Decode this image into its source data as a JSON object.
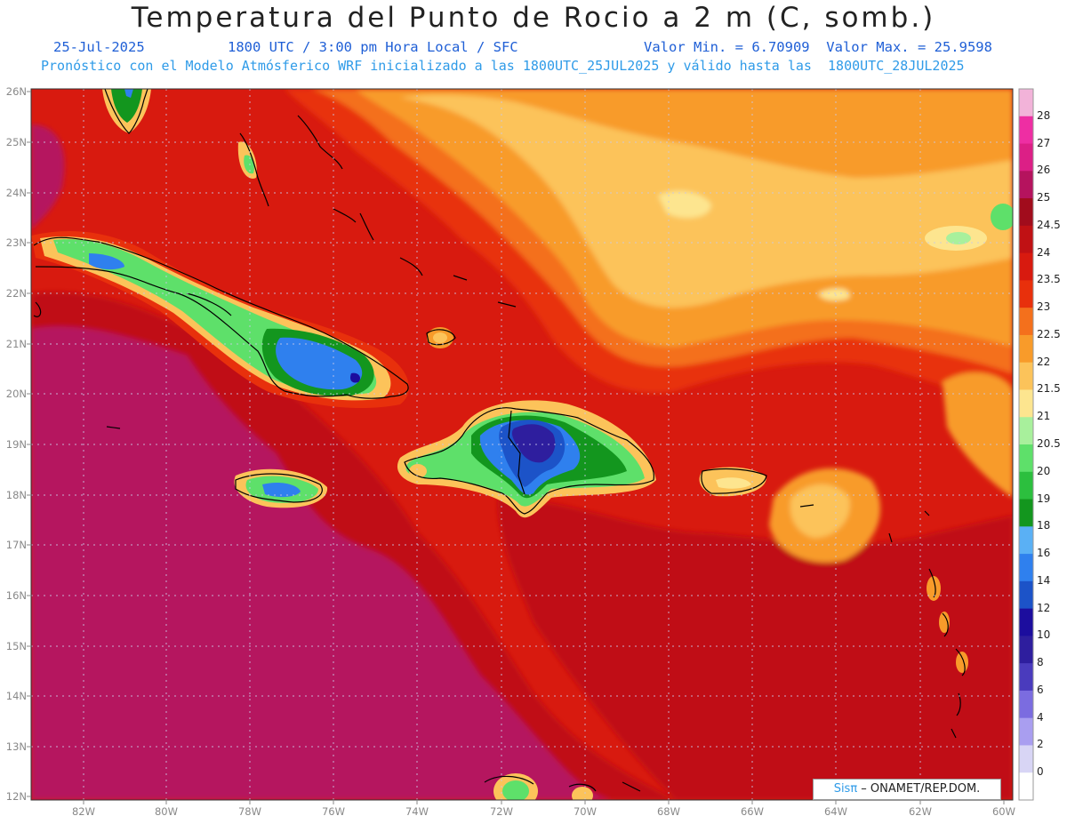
{
  "header": {
    "title": "Temperatura del Punto de Rocio a 2 m (C, somb.)",
    "date": "25-Jul-2025",
    "time": "1800 UTC / 3:00 pm Hora Local / SFC",
    "minmax": "Valor Min. = 6.70909  Valor Max. = 25.9598",
    "model_line": "Pronóstico con el Modelo Atmósferico WRF inicializado a las 1800UTC_25JUL2025 y válido hasta las  1800UTC_28JUL2025"
  },
  "axes": {
    "lat_labels": [
      "26N",
      "25N",
      "24N",
      "23N",
      "22N",
      "21N",
      "20N",
      "19N",
      "18N",
      "17N",
      "16N",
      "15N",
      "14N",
      "13N",
      "12N"
    ],
    "lon_labels": [
      "82W",
      "80W",
      "78W",
      "76W",
      "74W",
      "72W",
      "70W",
      "68W",
      "66W",
      "64W",
      "62W",
      "60W"
    ]
  },
  "legend": {
    "labels": [
      "28",
      "27",
      "26",
      "25",
      "24.5",
      "24",
      "23.5",
      "23",
      "22.5",
      "22",
      "21.5",
      "21",
      "20.5",
      "20",
      "19",
      "18",
      "16",
      "14",
      "12",
      "10",
      "8",
      "6",
      "4",
      "2",
      "0"
    ],
    "colors": [
      "#f2b3d9",
      "#ee2ea3",
      "#dc1f86",
      "#b5135e",
      "#a10c1c",
      "#c01114",
      "#d81a0f",
      "#e8300c",
      "#f4701c",
      "#f89b2a",
      "#fcc35a",
      "#fde58f",
      "#a8f09c",
      "#5ee06a",
      "#2cbf3e",
      "#13961e",
      "#5ab0f5",
      "#2f80ee",
      "#1c53c8",
      "#1c0d9e",
      "#2e1e9e",
      "#4a3bbd",
      "#7b6ce0",
      "#a99ef0",
      "#d8d5f5"
    ],
    "min_color": "#ffffff"
  },
  "credit": {
    "brand": "Sisπ",
    "text": " – ONAMET/REP.DOM."
  }
}
